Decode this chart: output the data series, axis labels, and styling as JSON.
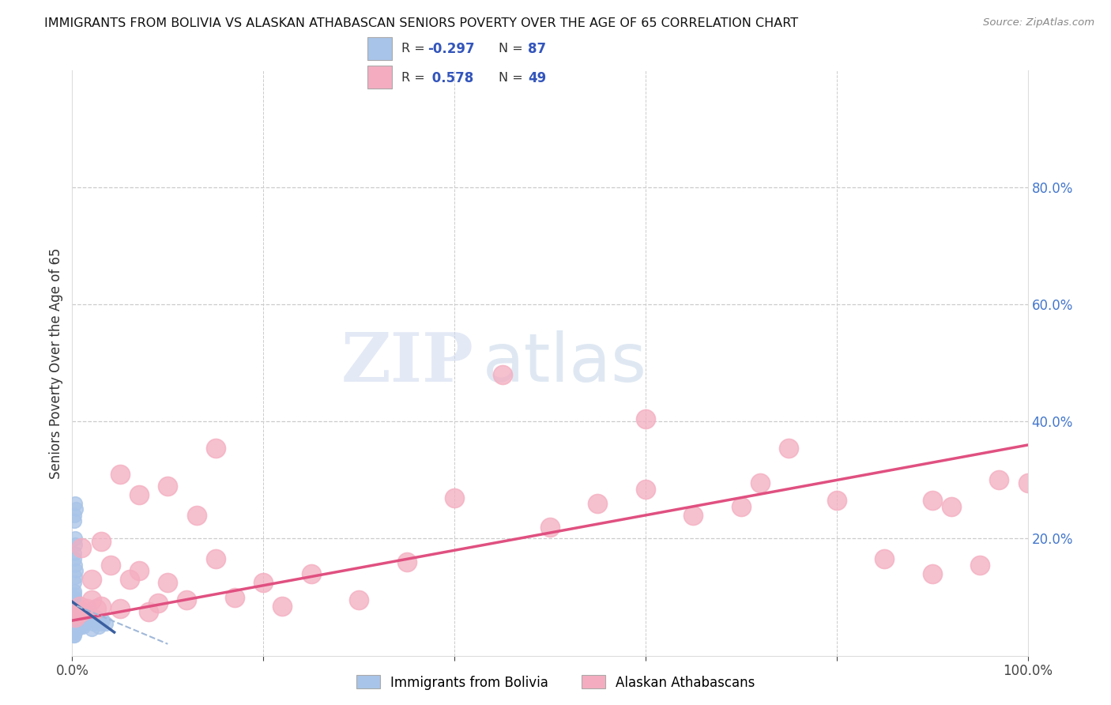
{
  "title": "IMMIGRANTS FROM BOLIVIA VS ALASKAN ATHABASCAN SENIORS POVERTY OVER THE AGE OF 65 CORRELATION CHART",
  "source": "Source: ZipAtlas.com",
  "ylabel": "Seniors Poverty Over the Age of 65",
  "xlim": [
    0,
    1.0
  ],
  "ylim": [
    0,
    1.0
  ],
  "xticklabels": [
    "0.0%",
    "",
    "",
    "",
    "",
    "100.0%"
  ],
  "yticklabels_right": [
    "",
    "20.0%",
    "40.0%",
    "60.0%",
    "80.0%"
  ],
  "bolivia_R": "-0.297",
  "bolivia_N": "87",
  "athabascan_R": "0.578",
  "athabascan_N": "49",
  "bolivia_color": "#a8c4e8",
  "athabascan_color": "#f4adc0",
  "bolivia_line_color": "#3a5fa0",
  "bolivia_line_dash_color": "#a0b8d8",
  "athabascan_line_color": "#e05080",
  "legend_label_bolivia": "Immigrants from Bolivia",
  "legend_label_athabascan": "Alaskan Athabascans",
  "watermark_zip": "ZIP",
  "watermark_atlas": "atlas",
  "bolivia_x": [
    0.001,
    0.001,
    0.001,
    0.001,
    0.001,
    0.001,
    0.001,
    0.001,
    0.001,
    0.001,
    0.002,
    0.002,
    0.002,
    0.002,
    0.002,
    0.002,
    0.002,
    0.002,
    0.002,
    0.002,
    0.002,
    0.002,
    0.002,
    0.002,
    0.002,
    0.002,
    0.002,
    0.002,
    0.002,
    0.002,
    0.003,
    0.003,
    0.003,
    0.003,
    0.003,
    0.003,
    0.003,
    0.003,
    0.003,
    0.003,
    0.004,
    0.004,
    0.004,
    0.004,
    0.004,
    0.004,
    0.004,
    0.004,
    0.005,
    0.005,
    0.005,
    0.005,
    0.005,
    0.006,
    0.006,
    0.006,
    0.007,
    0.007,
    0.008,
    0.008,
    0.009,
    0.01,
    0.011,
    0.012,
    0.013,
    0.015,
    0.016,
    0.018,
    0.02,
    0.022,
    0.025,
    0.028,
    0.03,
    0.032,
    0.035,
    0.003,
    0.004,
    0.002,
    0.002,
    0.003,
    0.003,
    0.002,
    0.002,
    0.003,
    0.004,
    0.003,
    0.002
  ],
  "bolivia_y": [
    0.055,
    0.065,
    0.075,
    0.08,
    0.085,
    0.09,
    0.095,
    0.1,
    0.045,
    0.035,
    0.05,
    0.055,
    0.06,
    0.065,
    0.07,
    0.075,
    0.08,
    0.085,
    0.09,
    0.04,
    0.045,
    0.05,
    0.055,
    0.06,
    0.065,
    0.1,
    0.105,
    0.11,
    0.035,
    0.04,
    0.045,
    0.05,
    0.055,
    0.06,
    0.065,
    0.07,
    0.075,
    0.04,
    0.045,
    0.05,
    0.045,
    0.05,
    0.055,
    0.06,
    0.065,
    0.07,
    0.075,
    0.08,
    0.045,
    0.05,
    0.055,
    0.06,
    0.065,
    0.05,
    0.055,
    0.06,
    0.05,
    0.055,
    0.05,
    0.055,
    0.05,
    0.055,
    0.05,
    0.06,
    0.055,
    0.065,
    0.07,
    0.06,
    0.045,
    0.055,
    0.065,
    0.05,
    0.055,
    0.06,
    0.055,
    0.26,
    0.25,
    0.24,
    0.23,
    0.2,
    0.19,
    0.175,
    0.165,
    0.155,
    0.145,
    0.135,
    0.125
  ],
  "athabascan_x": [
    0.003,
    0.005,
    0.008,
    0.01,
    0.015,
    0.02,
    0.025,
    0.03,
    0.04,
    0.05,
    0.06,
    0.07,
    0.08,
    0.09,
    0.1,
    0.12,
    0.13,
    0.15,
    0.17,
    0.2,
    0.22,
    0.25,
    0.3,
    0.35,
    0.4,
    0.45,
    0.5,
    0.55,
    0.6,
    0.65,
    0.7,
    0.72,
    0.75,
    0.8,
    0.85,
    0.9,
    0.92,
    0.95,
    0.97,
    1.0,
    0.01,
    0.02,
    0.03,
    0.05,
    0.07,
    0.1,
    0.15,
    0.6,
    0.9
  ],
  "athabascan_y": [
    0.065,
    0.07,
    0.085,
    0.075,
    0.08,
    0.095,
    0.08,
    0.085,
    0.155,
    0.08,
    0.13,
    0.145,
    0.075,
    0.09,
    0.125,
    0.095,
    0.24,
    0.165,
    0.1,
    0.125,
    0.085,
    0.14,
    0.095,
    0.16,
    0.27,
    0.48,
    0.22,
    0.26,
    0.285,
    0.24,
    0.255,
    0.295,
    0.355,
    0.265,
    0.165,
    0.265,
    0.255,
    0.155,
    0.3,
    0.295,
    0.185,
    0.13,
    0.195,
    0.31,
    0.275,
    0.29,
    0.355,
    0.405,
    0.14
  ],
  "athabascan_line_x": [
    0.0,
    1.0
  ],
  "athabascan_line_y": [
    0.06,
    0.36
  ],
  "bolivia_line_x": [
    0.0,
    0.044
  ],
  "bolivia_line_y": [
    0.092,
    0.04
  ]
}
